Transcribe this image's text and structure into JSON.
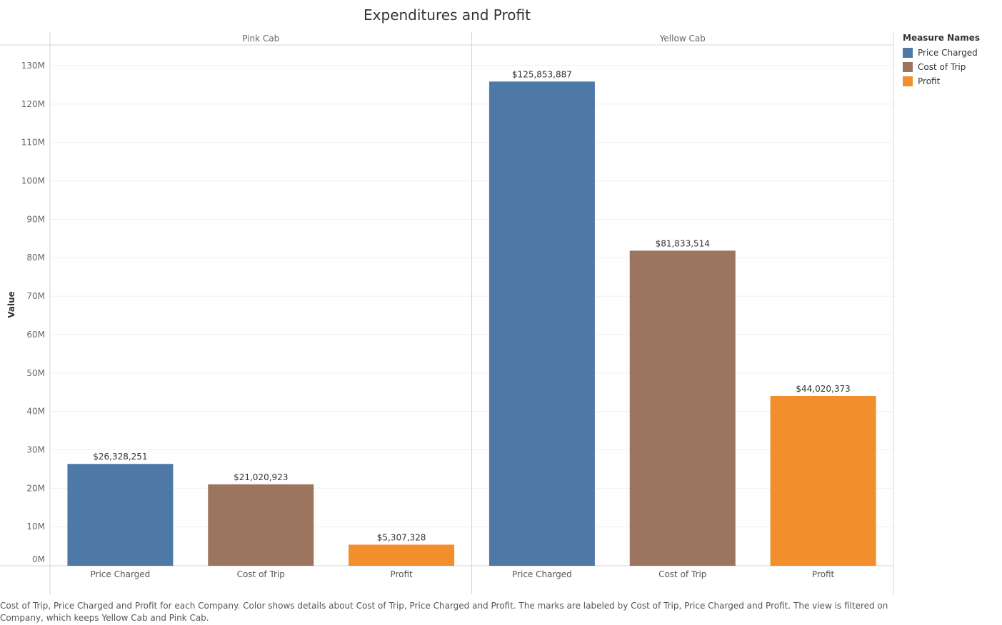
{
  "chart_data": {
    "type": "bar",
    "title": "Expenditures and Profit",
    "ylabel": "Value",
    "xlabel": "",
    "ylim": [
      0,
      130000000
    ],
    "y_ticks": [
      0,
      10000000,
      20000000,
      30000000,
      40000000,
      50000000,
      60000000,
      70000000,
      80000000,
      90000000,
      100000000,
      110000000,
      120000000,
      130000000
    ],
    "y_tick_labels": [
      "0M",
      "10M",
      "20M",
      "30M",
      "40M",
      "50M",
      "60M",
      "70M",
      "80M",
      "90M",
      "100M",
      "110M",
      "120M",
      "130M"
    ],
    "grid": true,
    "legend_position": "right",
    "legend": {
      "title": "Measure Names",
      "items": [
        {
          "label": "Price Charged",
          "color": "#4e79a7"
        },
        {
          "label": "Cost of Trip",
          "color": "#9c755f"
        },
        {
          "label": "Profit",
          "color": "#f28e2b"
        }
      ]
    },
    "categories": [
      "Price Charged",
      "Cost of Trip",
      "Profit"
    ],
    "panels": [
      {
        "name": "Pink Cab",
        "values": [
          26328251,
          21020923,
          5307328
        ],
        "labels": [
          "$26,328,251",
          "$21,020,923",
          "$5,307,328"
        ]
      },
      {
        "name": "Yellow Cab",
        "values": [
          125853887,
          81833514,
          44020373
        ],
        "labels": [
          "$125,853,887",
          "$81,833,514",
          "$44,020,373"
        ]
      }
    ]
  },
  "caption": "Cost of Trip, Price Charged and Profit for each Company.  Color shows details about Cost of Trip, Price Charged and Profit.  The marks are labeled by Cost of Trip, Price Charged and Profit. The view is filtered on Company, which keeps Yellow Cab and Pink Cab."
}
